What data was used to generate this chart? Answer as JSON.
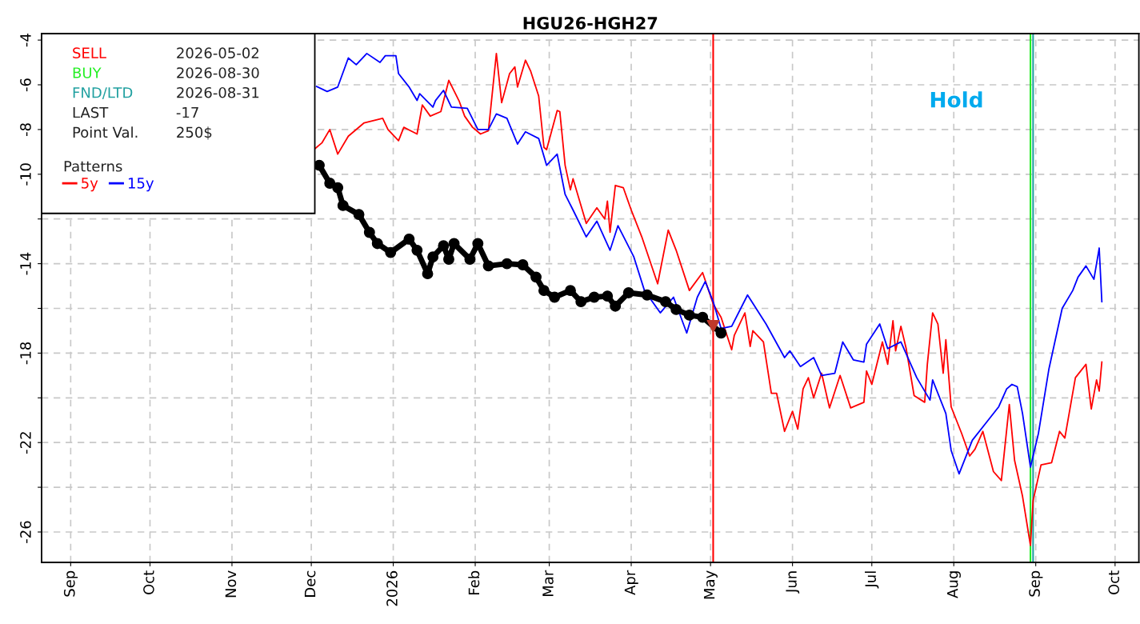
{
  "chart_data": {
    "type": "line",
    "title": "HGU26-HGH27",
    "xlim": [
      "2025-08-21",
      "2026-10-10"
    ],
    "xticks": [
      {
        "value": "2025-09-01",
        "label": "Sep"
      },
      {
        "value": "2025-10-01",
        "label": "Oct"
      },
      {
        "value": "2025-11-01",
        "label": "Nov"
      },
      {
        "value": "2025-12-01",
        "label": "Dec"
      },
      {
        "value": "2026-01-01",
        "label": "2026"
      },
      {
        "value": "2026-02-01",
        "label": "Feb"
      },
      {
        "value": "2026-03-01",
        "label": "Mar"
      },
      {
        "value": "2026-04-01",
        "label": "Apr"
      },
      {
        "value": "2026-05-01",
        "label": "May"
      },
      {
        "value": "2026-06-01",
        "label": "Jun"
      },
      {
        "value": "2026-07-01",
        "label": "Jul"
      },
      {
        "value": "2026-08-01",
        "label": "Aug"
      },
      {
        "value": "2026-09-01",
        "label": "Sep"
      },
      {
        "value": "2026-10-01",
        "label": "Oct"
      }
    ],
    "ylim": [
      -27.36,
      -3.71
    ],
    "yticks": [
      -4,
      -6,
      -8,
      -10,
      {
        "value": -12,
        "label": null
      },
      -14,
      {
        "value": -16,
        "label": null
      },
      -18,
      {
        "value": -20,
        "label": null
      },
      -22,
      {
        "value": -24,
        "label": null
      },
      -26
    ],
    "grid": true,
    "legend": "top left",
    "legend_title": "Patterns",
    "ref_lines": [
      {
        "axis": "x",
        "value": "2026-05-02",
        "label": "SELL",
        "color": "#ff0000"
      },
      {
        "axis": "x",
        "value": "2026-08-30",
        "label": "BUY",
        "color": "#22ee22"
      },
      {
        "axis": "x",
        "value": "2026-08-31",
        "label": "FND/LTD",
        "color": "#20a0a0"
      }
    ],
    "annotations": [
      "2026-05-02",
      "2026-08-30",
      "2026-08-31",
      "LAST",
      "-17",
      "Point Val.",
      "250$",
      "Hold"
    ],
    "series": [
      {
        "name": "5y",
        "color": "#ff0000",
        "x": [
          "2025-12-02",
          "2025-12-05",
          "2025-12-08",
          "2025-12-11",
          "2025-12-15",
          "2025-12-21",
          "2025-12-28",
          "2025-12-30",
          "2026-01-03",
          "2026-01-05",
          "2026-01-10",
          "2026-01-12",
          "2026-01-15",
          "2026-01-19",
          "2026-01-22",
          "2026-01-26",
          "2026-01-28",
          "2026-01-31",
          "2026-02-03",
          "2026-02-06",
          "2026-02-09",
          "2026-02-11",
          "2026-02-14",
          "2026-02-16",
          "2026-02-17",
          "2026-02-20",
          "2026-02-22",
          "2026-02-25",
          "2026-02-27",
          "2026-02-28",
          "2026-03-04",
          "2026-03-05",
          "2026-03-07",
          "2026-03-09",
          "2026-03-10",
          "2026-03-15",
          "2026-03-19",
          "2026-03-22",
          "2026-03-23",
          "2026-03-24",
          "2026-03-26",
          "2026-03-29",
          "2026-04-01",
          "2026-04-05",
          "2026-04-11",
          "2026-04-15",
          "2026-04-18",
          "2026-04-23",
          "2026-04-28",
          "2026-05-02",
          "2026-05-05",
          "2026-05-09",
          "2026-05-10",
          "2026-05-14",
          "2026-05-16",
          "2026-05-17",
          "2026-05-21",
          "2026-05-24",
          "2026-05-26",
          "2026-05-29",
          "2026-06-01",
          "2026-06-03",
          "2026-06-05",
          "2026-06-07",
          "2026-06-09",
          "2026-06-12",
          "2026-06-15",
          "2026-06-19",
          "2026-06-23",
          "2026-06-28",
          "2026-06-29",
          "2026-07-01",
          "2026-07-05",
          "2026-07-07",
          "2026-07-09",
          "2026-07-10",
          "2026-07-12",
          "2026-07-14",
          "2026-07-17",
          "2026-07-21",
          "2026-07-22",
          "2026-07-24",
          "2026-07-26",
          "2026-07-28",
          "2026-07-29",
          "2026-07-31",
          "2026-08-04",
          "2026-08-07",
          "2026-08-09",
          "2026-08-12",
          "2026-08-16",
          "2026-08-19",
          "2026-08-22",
          "2026-08-24",
          "2026-08-27",
          "2026-08-30",
          "2026-08-31",
          "2026-09-03",
          "2026-09-07",
          "2026-09-10",
          "2026-09-12",
          "2026-09-16",
          "2026-09-20",
          "2026-09-22",
          "2026-09-24",
          "2026-09-25",
          "2026-09-26"
        ],
        "values": [
          -8.9,
          -8.6,
          -8.0,
          -9.1,
          -8.3,
          -7.7,
          -7.5,
          -8.0,
          -8.5,
          -7.9,
          -8.2,
          -6.9,
          -7.4,
          -7.2,
          -5.8,
          -6.75,
          -7.4,
          -7.9,
          -8.2,
          -8.05,
          -4.6,
          -6.8,
          -5.5,
          -5.2,
          -6.1,
          -4.9,
          -5.4,
          -6.5,
          -8.8,
          -8.9,
          -7.15,
          -7.2,
          -9.6,
          -10.7,
          -10.2,
          -12.2,
          -11.5,
          -12.0,
          -11.2,
          -12.6,
          -10.5,
          -10.6,
          -11.6,
          -12.8,
          -14.9,
          -12.5,
          -13.4,
          -15.2,
          -14.4,
          -15.8,
          -16.4,
          -17.85,
          -17.2,
          -16.2,
          -17.7,
          -17.0,
          -17.5,
          -19.8,
          -19.8,
          -21.5,
          -20.6,
          -21.4,
          -19.6,
          -19.1,
          -20.0,
          -18.9,
          -20.45,
          -19.0,
          -20.45,
          -20.2,
          -18.8,
          -19.4,
          -17.5,
          -18.5,
          -16.55,
          -17.9,
          -16.8,
          -17.8,
          -19.9,
          -20.2,
          -18.5,
          -16.2,
          -16.7,
          -18.9,
          -17.4,
          -20.4,
          -21.6,
          -22.6,
          -22.3,
          -21.5,
          -23.3,
          -23.7,
          -20.3,
          -22.8,
          -24.4,
          -26.6,
          -24.6,
          -23.0,
          -22.9,
          -21.5,
          -21.8,
          -19.1,
          -18.5,
          -20.5,
          -19.2,
          -19.7,
          -18.4
        ]
      },
      {
        "name": "15y",
        "color": "#0000ff",
        "x": [
          "2025-12-03",
          "2025-12-07",
          "2025-12-11",
          "2025-12-15",
          "2025-12-18",
          "2025-12-22",
          "2025-12-27",
          "2025-12-29",
          "2026-01-02",
          "2026-01-03",
          "2026-01-07",
          "2026-01-10",
          "2026-01-11",
          "2026-01-16",
          "2026-01-17",
          "2026-01-20",
          "2026-01-23",
          "2026-01-29",
          "2026-02-02",
          "2026-02-06",
          "2026-02-09",
          "2026-02-13",
          "2026-02-17",
          "2026-02-20",
          "2026-02-25",
          "2026-02-28",
          "2026-03-04",
          "2026-03-07",
          "2026-03-10",
          "2026-03-15",
          "2026-03-19",
          "2026-03-24",
          "2026-03-27",
          "2026-04-02",
          "2026-04-06",
          "2026-04-12",
          "2026-04-17",
          "2026-04-22",
          "2026-04-26",
          "2026-04-29",
          "2026-05-02",
          "2026-05-05",
          "2026-05-09",
          "2026-05-15",
          "2026-05-22",
          "2026-05-29",
          "2026-05-31",
          "2026-06-04",
          "2026-06-09",
          "2026-06-12",
          "2026-06-17",
          "2026-06-20",
          "2026-06-24",
          "2026-06-28",
          "2026-06-29",
          "2026-07-04",
          "2026-07-07",
          "2026-07-12",
          "2026-07-18",
          "2026-07-23",
          "2026-07-24",
          "2026-07-29",
          "2026-07-31",
          "2026-08-03",
          "2026-08-08",
          "2026-08-14",
          "2026-08-18",
          "2026-08-21",
          "2026-08-23",
          "2026-08-25",
          "2026-08-27",
          "2026-08-30",
          "2026-09-02",
          "2026-09-06",
          "2026-09-11",
          "2026-09-15",
          "2026-09-17",
          "2026-09-20",
          "2026-09-23",
          "2026-09-25",
          "2026-09-26"
        ],
        "values": [
          -6.07,
          -6.3,
          -6.1,
          -4.8,
          -5.1,
          -4.6,
          -5.0,
          -4.7,
          -4.7,
          -5.5,
          -6.1,
          -6.7,
          -6.4,
          -7.0,
          -6.7,
          -6.25,
          -7.0,
          -7.05,
          -8.0,
          -8.0,
          -7.3,
          -7.5,
          -8.65,
          -8.1,
          -8.4,
          -9.6,
          -9.1,
          -10.9,
          -11.6,
          -12.8,
          -12.1,
          -13.4,
          -12.3,
          -13.7,
          -15.2,
          -16.2,
          -15.5,
          -17.1,
          -15.5,
          -14.8,
          -15.7,
          -16.9,
          -16.8,
          -15.4,
          -16.7,
          -18.2,
          -17.9,
          -18.6,
          -18.2,
          -19.0,
          -18.9,
          -17.5,
          -18.3,
          -18.4,
          -17.6,
          -16.7,
          -17.8,
          -17.5,
          -19.1,
          -20.1,
          -19.2,
          -20.7,
          -22.35,
          -23.4,
          -21.9,
          -21.0,
          -20.4,
          -19.6,
          -19.4,
          -19.5,
          -20.7,
          -23.1,
          -21.6,
          -18.7,
          -16.0,
          -15.2,
          -14.6,
          -14.1,
          -14.7,
          -13.3,
          -15.7
        ]
      },
      {
        "color": "#000000",
        "marker": "circle",
        "x": [
          "2025-12-04",
          "2025-12-08",
          "2025-12-11",
          "2025-12-13",
          "2025-12-19",
          "2025-12-23",
          "2025-12-26",
          "2025-12-31",
          "2026-01-07",
          "2026-01-10",
          "2026-01-14",
          "2026-01-16",
          "2026-01-20",
          "2026-01-22",
          "2026-01-24",
          "2026-01-30",
          "2026-02-02",
          "2026-02-06",
          "2026-02-13",
          "2026-02-19",
          "2026-02-24",
          "2026-02-27",
          "2026-03-03",
          "2026-03-09",
          "2026-03-13",
          "2026-03-18",
          "2026-03-23",
          "2026-03-26",
          "2026-03-31",
          "2026-04-07",
          "2026-04-14",
          "2026-04-18",
          "2026-04-23",
          "2026-04-28",
          "2026-05-05"
        ],
        "values": [
          -9.6,
          -10.4,
          -10.6,
          -11.4,
          -11.8,
          -12.6,
          -13.1,
          -13.5,
          -12.9,
          -13.4,
          -14.45,
          -13.7,
          -13.2,
          -13.8,
          -13.1,
          -13.8,
          -13.1,
          -14.1,
          -14.0,
          -14.05,
          -14.6,
          -15.2,
          -15.5,
          -15.2,
          -15.7,
          -15.5,
          -15.45,
          -15.9,
          -15.3,
          -15.4,
          -15.7,
          -16.05,
          -16.3,
          -16.4,
          -17.1
        ]
      },
      {
        "type": "scatter",
        "color": "#c0392b",
        "marker": "triangle",
        "x": [
          "2026-05-02"
        ],
        "values": [
          -16.8
        ]
      }
    ]
  }
}
